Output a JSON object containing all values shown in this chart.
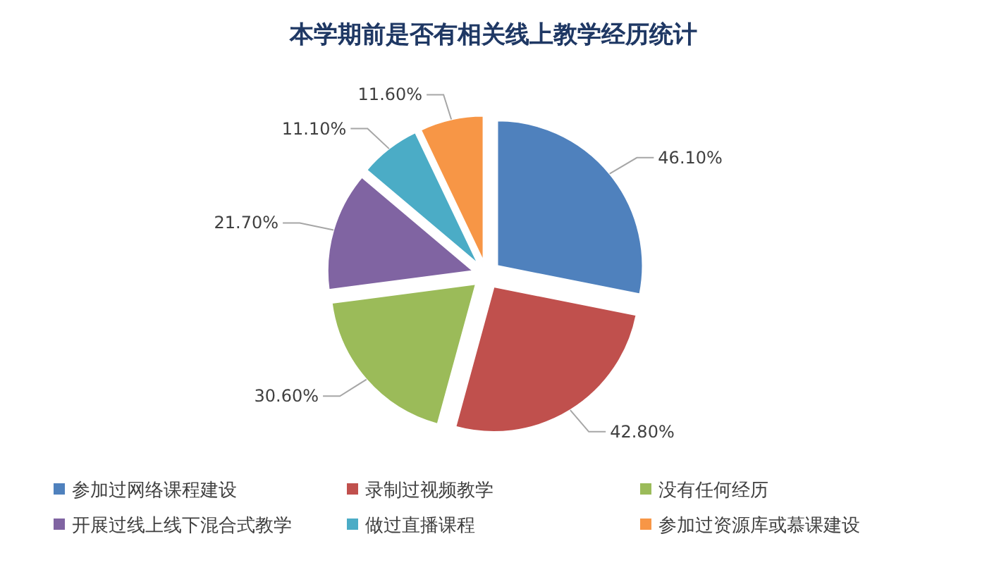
{
  "chart_data": {
    "type": "pie",
    "title": "本学期前是否有相关线上教学经历统计",
    "categories": [
      "参加过网络课程建设",
      "录制过视频教学",
      "没有任何经历",
      "开展过线上线下混合式教学",
      "做过直播课程",
      "参加过资源库或慕课建设"
    ],
    "values": [
      46.1,
      42.8,
      30.6,
      21.7,
      11.1,
      11.6
    ],
    "value_labels": [
      "46.10%",
      "42.80%",
      "30.60%",
      "21.70%",
      "11.10%",
      "11.60%"
    ],
    "colors": [
      "#4f81bd",
      "#c0504d",
      "#9bbb59",
      "#8064a2",
      "#4bacc6",
      "#f79646"
    ],
    "legend": "bottom"
  }
}
